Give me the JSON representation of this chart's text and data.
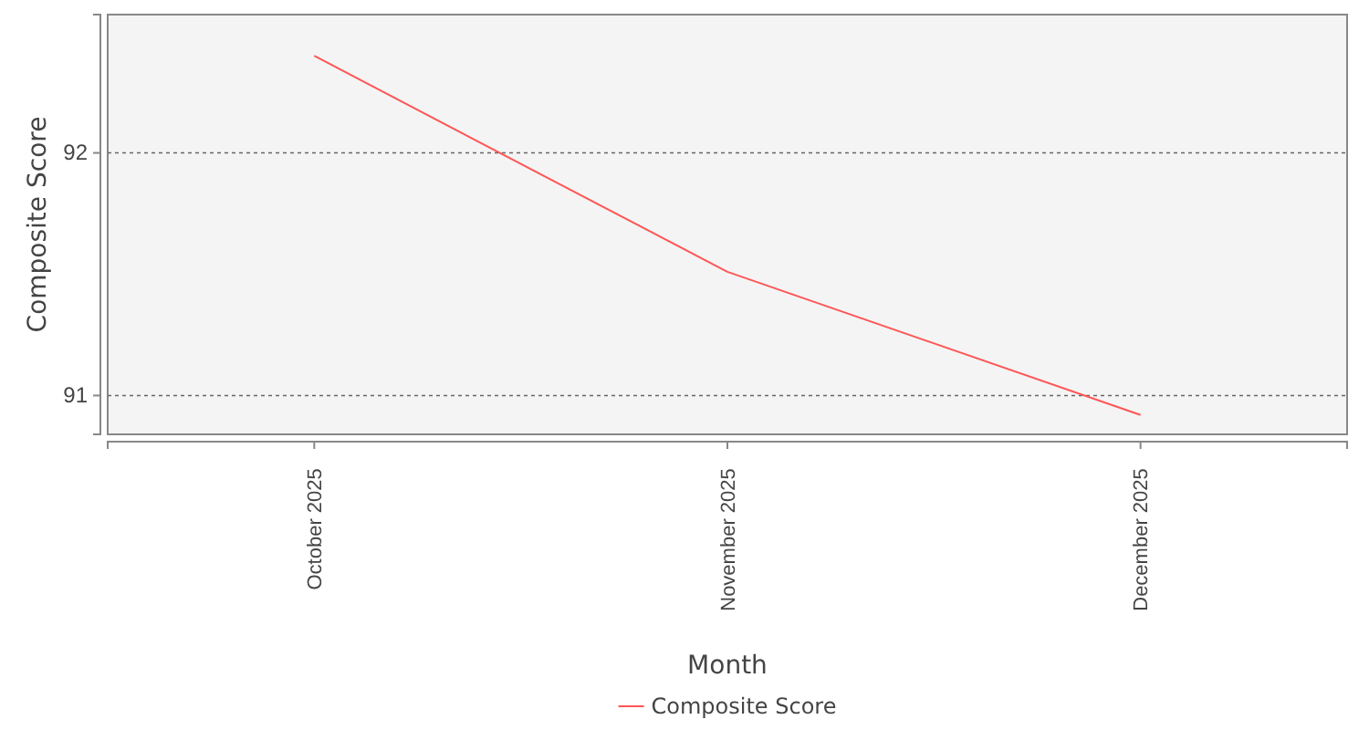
{
  "chart_data": {
    "type": "line",
    "xlabel": "Month",
    "ylabel": "Composite Score",
    "categories": [
      "October 2025",
      "November 2025",
      "December 2025"
    ],
    "series": [
      {
        "name": "Composite Score",
        "color": "#ff5555",
        "values": [
          92.4,
          91.51,
          90.92
        ]
      }
    ],
    "ylim": [
      90.84,
      92.57
    ],
    "yticks": [
      91,
      92
    ],
    "grid": "y",
    "legend": "bottom",
    "marker": "none",
    "line_style": "solid"
  }
}
